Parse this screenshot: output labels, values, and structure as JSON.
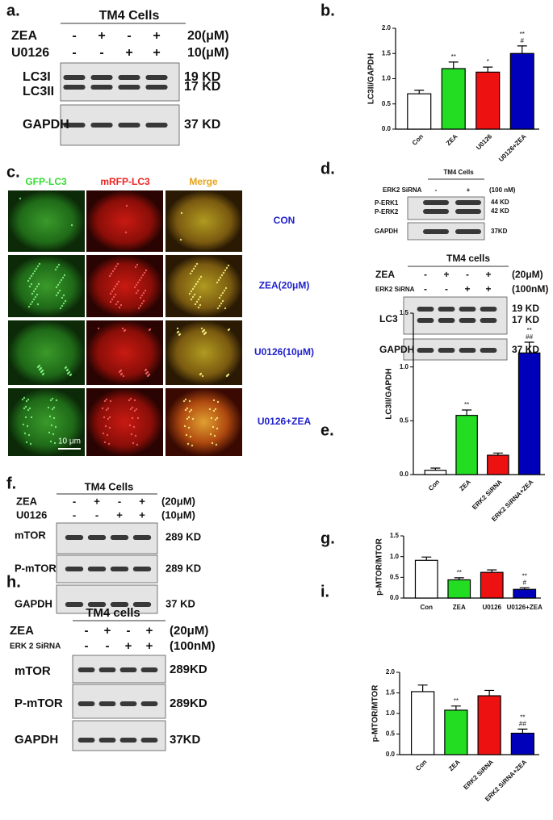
{
  "panel_labels": [
    "a.",
    "b.",
    "c.",
    "d.",
    "e.",
    "f.",
    "g.",
    "h.",
    "i."
  ],
  "blots": [
    {
      "title": "TM4 Cells",
      "conditions": [
        {
          "name": "ZEA",
          "signs": [
            "-",
            "+",
            "-",
            "+"
          ],
          "dose": "20(μM)"
        },
        {
          "name": "U0126",
          "signs": [
            "-",
            "-",
            "+",
            "+"
          ],
          "dose": "10(μM)"
        }
      ],
      "rows": [
        {
          "labels": [
            "LC3I",
            "LC3II"
          ],
          "sizes": [
            "19 KD",
            "17 KD"
          ]
        },
        {
          "labels": [
            "GAPDH"
          ],
          "sizes": [
            "37 KD"
          ]
        }
      ]
    },
    {
      "title": "TM4 Cells",
      "conditions": [
        {
          "name": "ERK2 SiRNA",
          "signs": [
            "-",
            "+"
          ],
          "dose": "(100 nM)"
        }
      ],
      "rows": [
        {
          "labels": [
            "P-ERK1",
            "P-ERK2"
          ],
          "sizes": [
            "44 KD",
            "42 KD"
          ]
        },
        {
          "labels": [
            "GAPDH"
          ],
          "sizes": [
            "37KD"
          ]
        }
      ]
    },
    {
      "title": "TM4 cells",
      "conditions": [
        {
          "name": "ZEA",
          "signs": [
            "-",
            "+",
            "-",
            "+"
          ],
          "dose": "(20μM)"
        },
        {
          "name": "ERK2 SiRNA",
          "signs": [
            "-",
            "-",
            "+",
            "+"
          ],
          "dose": "(100nM)"
        }
      ],
      "rows": [
        {
          "labels": [
            "LC3"
          ],
          "sizes": [
            "19 KD",
            "17 KD"
          ]
        },
        {
          "labels": [
            "GAPDH"
          ],
          "sizes": [
            "37 KD"
          ]
        }
      ]
    },
    {
      "title": "TM4 Cells",
      "conditions": [
        {
          "name": "ZEA",
          "signs": [
            "-",
            "+",
            "-",
            "+"
          ],
          "dose": "(20μM)"
        },
        {
          "name": "U0126",
          "signs": [
            "-",
            "-",
            "+",
            "+"
          ],
          "dose": "(10μM)"
        }
      ],
      "rows": [
        {
          "labels": [
            "mTOR"
          ],
          "sizes": [
            "289 KD"
          ]
        },
        {
          "labels": [
            "P-mTOR"
          ],
          "sizes": [
            "289 KD"
          ]
        },
        {
          "labels": [
            "GAPDH"
          ],
          "sizes": [
            "37 KD"
          ]
        }
      ]
    },
    {
      "title": "TM4 cells",
      "conditions": [
        {
          "name": "ZEA",
          "signs": [
            "-",
            "+",
            "-",
            "+"
          ],
          "dose": "(20μM)"
        },
        {
          "name": "ERK 2 SiRNA",
          "signs": [
            "-",
            "-",
            "+",
            "+"
          ],
          "dose": "(100nM)"
        }
      ],
      "rows": [
        {
          "labels": [
            "mTOR"
          ],
          "sizes": [
            "289KD"
          ]
        },
        {
          "labels": [
            "P-mTOR"
          ],
          "sizes": [
            "289KD"
          ]
        },
        {
          "labels": [
            "GAPDH"
          ],
          "sizes": [
            "37KD"
          ]
        }
      ]
    }
  ],
  "microscopy": {
    "columns": [
      "GFP-LC3",
      "mRFP-LC3",
      "Merge"
    ],
    "rows": [
      "CON",
      "ZEA(20μM)",
      "U0126(10μM)",
      "U0126+ZEA"
    ],
    "scale_bar": "10 μm"
  },
  "chart_data": [
    {
      "type": "bar",
      "y_label": "LC3II/GAPDH",
      "categories": [
        "Con",
        "ZEA",
        "U0126",
        "U0126+ZEA"
      ],
      "values": [
        0.7,
        1.2,
        1.13,
        1.5
      ],
      "errors": [
        0.07,
        0.13,
        0.1,
        0.15
      ],
      "annotations": [
        null,
        [
          "**"
        ],
        [
          "*"
        ],
        [
          "**",
          "#"
        ]
      ],
      "colors": [
        "#ffffff",
        "#22dd22",
        "#ee1111",
        "#0000bb"
      ],
      "ylim": [
        0,
        2
      ],
      "yticks": [
        {
          "value": 0,
          "label": "0.0"
        },
        0.5,
        {
          "value": 1,
          "label": "1.0"
        },
        1.5,
        {
          "value": 2,
          "label": "2.0"
        }
      ]
    },
    {
      "type": "bar",
      "y_label": "LC3II/GAPDH",
      "categories": [
        "Con",
        "ZEA",
        "ERK2 SiRNA",
        "ERK2 SiRNA+ZEA"
      ],
      "values": [
        0.04,
        0.55,
        0.18,
        1.13
      ],
      "errors": [
        0.02,
        0.05,
        0.02,
        0.1
      ],
      "annotations": [
        null,
        [
          "**"
        ],
        null,
        [
          "**",
          "##"
        ]
      ],
      "colors": [
        "#ffffff",
        "#22dd22",
        "#ee1111",
        "#0000bb"
      ],
      "ylim": [
        0,
        1.5
      ],
      "yticks": [
        {
          "value": 0,
          "label": "0.0"
        },
        0.5,
        {
          "value": 1,
          "label": "1.0"
        },
        1.5
      ]
    },
    {
      "type": "bar",
      "y_label": "p-MTOR/MTOR",
      "categories": [
        "Con",
        "ZEA",
        "U0126",
        "U0126+ZEA"
      ],
      "values": [
        0.91,
        0.44,
        0.62,
        0.21
      ],
      "errors": [
        0.08,
        0.05,
        0.06,
        0.04
      ],
      "annotations": [
        null,
        [
          "**"
        ],
        null,
        [
          "**",
          "#"
        ]
      ],
      "colors": [
        "#ffffff",
        "#22dd22",
        "#ee1111",
        "#0000bb"
      ],
      "ylim": [
        0,
        1.5
      ],
      "yticks": [
        {
          "value": 0,
          "label": "0.0"
        },
        0.5,
        {
          "value": 1,
          "label": "1.0"
        },
        1.5
      ]
    },
    {
      "type": "bar",
      "y_label": "p-MTOR/MTOR",
      "categories": [
        "Con",
        "ZEA",
        "ERK2 SiRNA",
        "ERK2 SiRNA+ZEA"
      ],
      "values": [
        1.53,
        1.08,
        1.43,
        0.52
      ],
      "errors": [
        0.16,
        0.1,
        0.13,
        0.1
      ],
      "annotations": [
        null,
        [
          "**"
        ],
        null,
        [
          "**",
          "##"
        ]
      ],
      "colors": [
        "#ffffff",
        "#22dd22",
        "#ee1111",
        "#0000bb"
      ],
      "ylim": [
        0,
        2
      ],
      "yticks": [
        {
          "value": 0,
          "label": "0.0"
        },
        0.5,
        {
          "value": 1,
          "label": "1.0"
        },
        1.5,
        {
          "value": 2,
          "label": "2.0"
        }
      ]
    }
  ]
}
